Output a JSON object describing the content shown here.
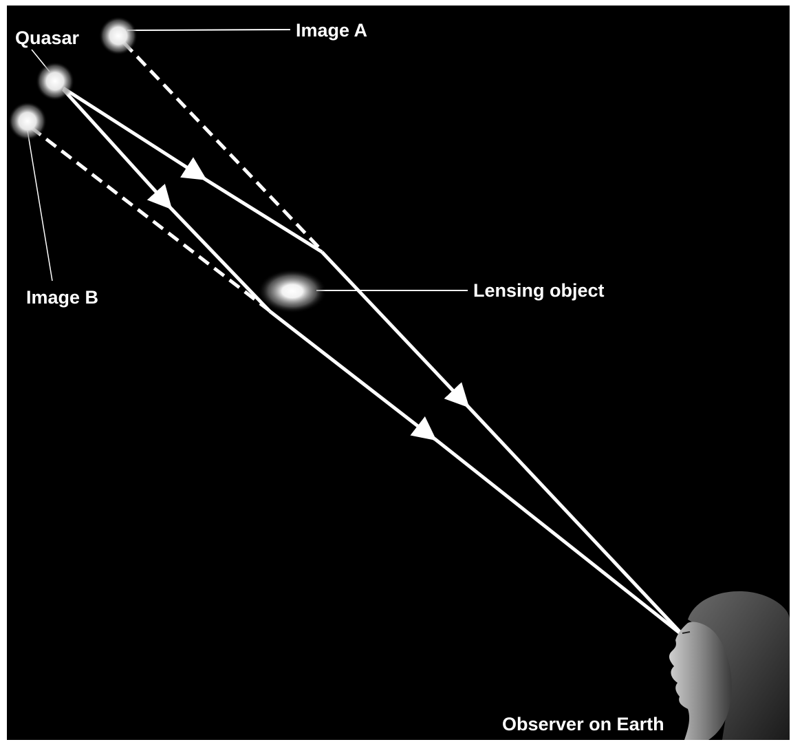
{
  "labels": {
    "quasar": "Quasar",
    "image_a": "Image A",
    "image_b": "Image B",
    "lensing_object": "Lensing object",
    "observer": "Observer on Earth"
  }
}
